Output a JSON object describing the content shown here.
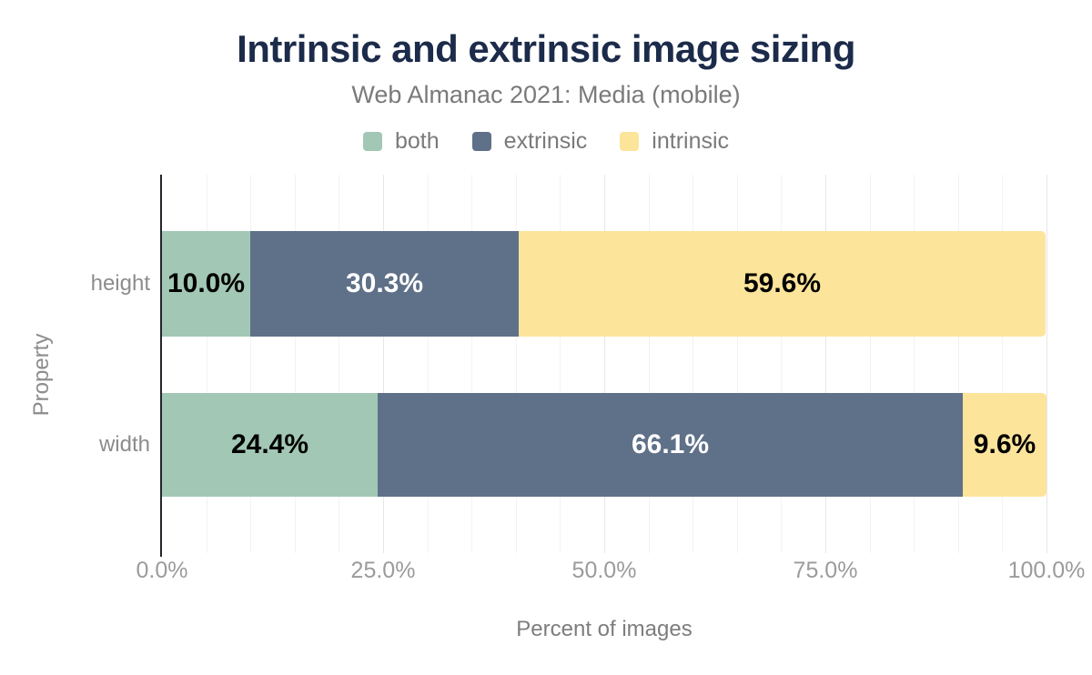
{
  "title": "Intrinsic and extrinsic image sizing",
  "subtitle": "Web Almanac 2021: Media (mobile)",
  "colors": {
    "title": "#1c2b4a",
    "axis_line": "#24242c",
    "background": "#ffffff",
    "series_both": "#a2c8b5",
    "series_extrinsic": "#5f7089",
    "series_intrinsic": "#fde49b"
  },
  "chart_data": {
    "type": "bar",
    "orientation": "horizontal-stacked",
    "title": "Intrinsic and extrinsic image sizing",
    "subtitle": "Web Almanac 2021: Media (mobile)",
    "categories": [
      "height",
      "width"
    ],
    "series": [
      {
        "name": "both",
        "color": "#a2c8b5",
        "label_color": "#000000",
        "values": [
          10.0,
          24.4
        ],
        "labels": [
          "10.0%",
          "24.4%"
        ]
      },
      {
        "name": "extrinsic",
        "color": "#5f7089",
        "label_color": "#ffffff",
        "values": [
          30.3,
          66.1
        ],
        "labels": [
          "30.3%",
          "66.1%"
        ]
      },
      {
        "name": "intrinsic",
        "color": "#fde49b",
        "label_color": "#000000",
        "values": [
          59.6,
          9.6
        ],
        "labels": [
          "59.6%",
          "9.6%"
        ]
      }
    ],
    "xlabel": "Percent of images",
    "ylabel": "Property",
    "xlim": [
      0,
      100
    ],
    "x_ticks": [
      "0.0%",
      "25.0%",
      "50.0%",
      "75.0%",
      "100.0%"
    ],
    "x_tick_values": [
      0,
      25,
      50,
      75,
      100
    ],
    "grid": {
      "minor_step": 5,
      "major_step": 25,
      "shown": true
    },
    "legend_position": "top"
  }
}
